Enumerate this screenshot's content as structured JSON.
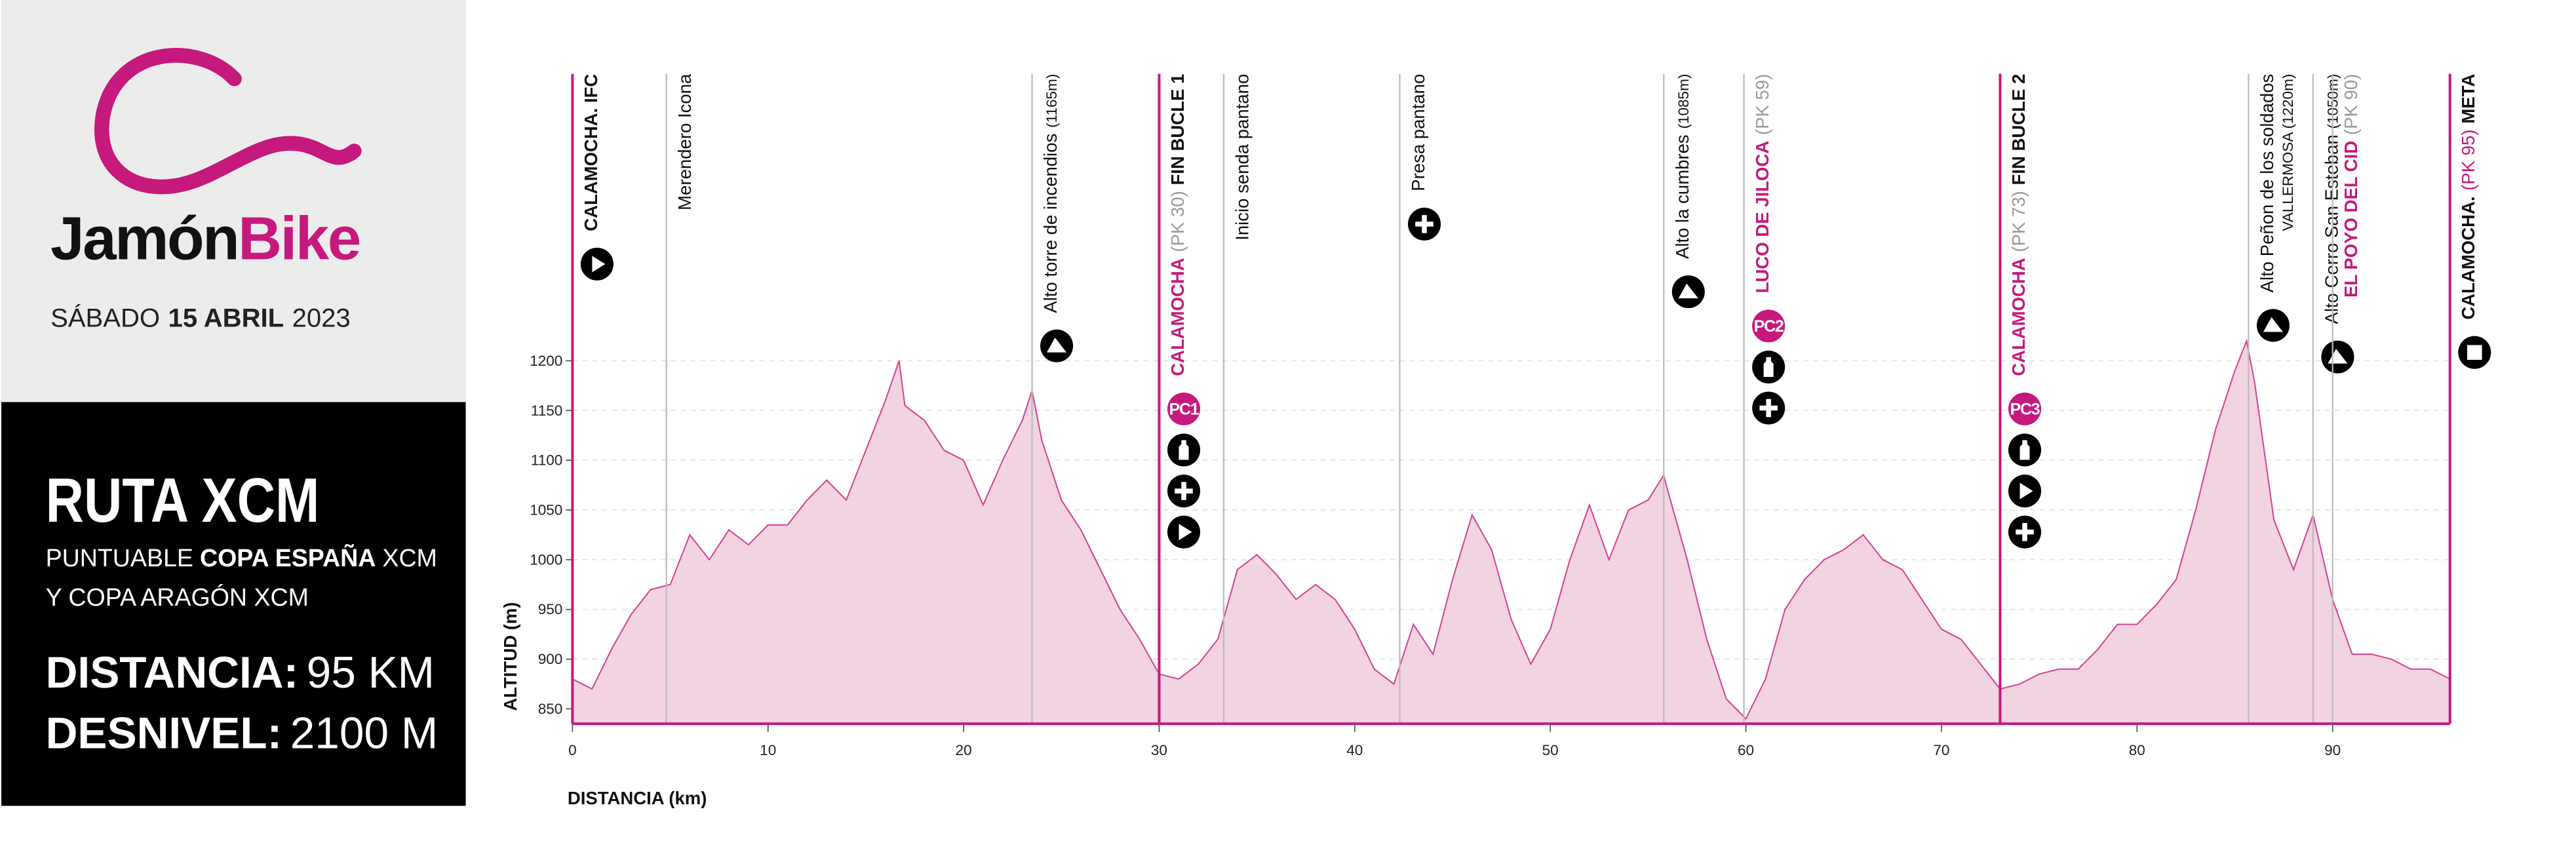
{
  "panel": {
    "brand": [
      "Jamón",
      "Bike"
    ],
    "date": [
      "SÁBADO",
      "15 ABRIL",
      "2023"
    ],
    "route": "RUTA XCM",
    "subtitle": [
      [
        "PUNTUABLE",
        "COPA ESPAÑA",
        "XCM"
      ],
      [
        "Y COPA ARAGÓN XCM"
      ]
    ],
    "distance": [
      "DISTANCIA:",
      "95 KM"
    ],
    "elevation_gain": [
      "DESNIVEL:",
      "2100 M"
    ]
  },
  "chart_data": {
    "type": "area",
    "x_label": "DISTANCIA (km)",
    "y_label": "ALTITUD (m)",
    "color": "#c6197d",
    "fill": "#f1d3e1",
    "grid": true,
    "xlim": [
      0,
      96
    ],
    "ylim": [
      835,
      1220
    ],
    "xticks": [
      0,
      10,
      20,
      30,
      40,
      50,
      60,
      70,
      80,
      90
    ],
    "yticks": [
      850,
      900,
      950,
      1000,
      1050,
      1100,
      1150,
      1200
    ],
    "x": [
      0,
      1,
      2,
      3,
      4,
      5,
      6,
      7,
      8,
      9,
      10,
      11,
      12,
      13,
      14,
      15,
      16,
      16.7,
      17,
      18,
      19,
      20,
      21,
      22,
      23,
      23.5,
      24,
      25,
      26,
      27,
      28,
      29,
      30,
      31,
      32,
      33,
      34,
      35,
      36,
      37,
      38,
      39,
      40,
      41,
      42,
      43,
      44,
      45,
      46,
      47,
      48,
      49,
      50,
      51,
      52,
      53,
      54,
      55,
      55.8,
      56,
      57,
      58,
      59,
      60,
      61,
      62,
      63,
      64,
      65,
      66,
      67,
      68,
      69,
      70,
      71,
      72,
      73,
      74,
      75,
      76,
      77,
      78,
      79,
      80,
      81,
      82,
      83,
      84,
      85,
      85.6,
      86,
      87,
      88,
      89,
      90,
      91,
      92,
      93,
      94,
      95,
      96
    ],
    "values": [
      880,
      870,
      910,
      945,
      970,
      975,
      1025,
      1000,
      1030,
      1015,
      1035,
      1035,
      1060,
      1080,
      1060,
      1110,
      1160,
      1200,
      1155,
      1140,
      1110,
      1100,
      1055,
      1100,
      1140,
      1170,
      1120,
      1060,
      1030,
      990,
      950,
      920,
      885,
      880,
      895,
      920,
      990,
      1005,
      985,
      960,
      975,
      960,
      930,
      890,
      875,
      935,
      905,
      980,
      1045,
      1010,
      940,
      895,
      930,
      1000,
      1055,
      1000,
      1050,
      1060,
      1085,
      1070,
      1000,
      920,
      860,
      840,
      880,
      950,
      980,
      1000,
      1010,
      1025,
      1000,
      990,
      960,
      930,
      920,
      895,
      870,
      875,
      885,
      890,
      890,
      910,
      935,
      935,
      955,
      980,
      1050,
      1130,
      1190,
      1220,
      1180,
      1040,
      990,
      1045,
      960,
      905,
      905,
      900,
      890,
      890,
      880
    ],
    "waypoints": [
      {
        "km": 0,
        "major": true,
        "label": [
          [
            {
              "text": "CALAMOCHA. IFC",
              "bold": true
            }
          ]
        ],
        "icons": [
          "play"
        ]
      },
      {
        "km": 4.8,
        "label": [
          [
            {
              "text": "Merendero Icona"
            }
          ]
        ],
        "icons": []
      },
      {
        "km": 23.5,
        "label": [
          [
            {
              "text": "Alto torre de incendios"
            },
            {
              "text": "(1165m)",
              "small": true
            }
          ]
        ],
        "icons": [
          "mountain"
        ]
      },
      {
        "km": 30,
        "major": true,
        "label": [
          [
            {
              "text": "CALAMOCHA",
              "bold": true,
              "color": "#c6197d"
            },
            {
              "text": "(PK 30)",
              "color": "#999999"
            },
            {
              "text": "FIN BUCLE 1",
              "bold": true
            }
          ]
        ],
        "checkpoint": "PC1",
        "icons": [
          "bottle",
          "plus",
          "play"
        ]
      },
      {
        "km": 33.3,
        "label": [
          [
            {
              "text": "Inicio senda pantano"
            }
          ]
        ],
        "icons": []
      },
      {
        "km": 42.3,
        "label": [
          [
            {
              "text": "Presa pantano"
            }
          ]
        ],
        "icons": [
          "plus"
        ]
      },
      {
        "km": 55.8,
        "label": [
          [
            {
              "text": "Alto la cumbres"
            },
            {
              "text": "(1085m)",
              "small": true
            }
          ]
        ],
        "icons": [
          "mountain"
        ]
      },
      {
        "km": 59.9,
        "label": [
          [
            {
              "text": "LUCO DE JILOCA",
              "bold": true,
              "color": "#c6197d"
            },
            {
              "text": "(PK 59)",
              "color": "#999999"
            }
          ]
        ],
        "checkpoint": "PC2",
        "icons": [
          "bottle",
          "plus"
        ]
      },
      {
        "km": 73,
        "major": true,
        "label": [
          [
            {
              "text": "CALAMOCHA",
              "bold": true,
              "color": "#c6197d"
            },
            {
              "text": "(PK 73)",
              "color": "#999999"
            },
            {
              "text": "FIN BUCLE 2",
              "bold": true
            }
          ]
        ],
        "checkpoint": "PC3",
        "icons": [
          "bottle",
          "play",
          "plus"
        ]
      },
      {
        "km": 85.7,
        "label": [
          [
            {
              "text": "Alto Peñon de los soldados"
            }
          ],
          [
            {
              "text": "VALLERMOSA (1220m)",
              "small": true
            }
          ]
        ],
        "icons": [
          "mountain"
        ]
      },
      {
        "km": 89,
        "label": [
          [
            {
              "text": "Alto Cerro San Esteban"
            },
            {
              "text": "(1050m)",
              "small": true
            }
          ]
        ],
        "icons": [
          "mountain"
        ]
      },
      {
        "km": 90,
        "label": [
          [
            {
              "text": "EL POYO DEL CID",
              "bold": true,
              "color": "#c6197d"
            },
            {
              "text": "(PK 90)",
              "color": "#999999"
            }
          ]
        ],
        "icons": []
      },
      {
        "km": 96,
        "major": true,
        "label": [
          [
            {
              "text": "CALAMOCHA.",
              "bold": true
            },
            {
              "text": "(PK 95)",
              "color": "#c6197d"
            },
            {
              "text": "META",
              "bold": true
            }
          ]
        ],
        "icons": [
          "stop"
        ]
      }
    ]
  }
}
